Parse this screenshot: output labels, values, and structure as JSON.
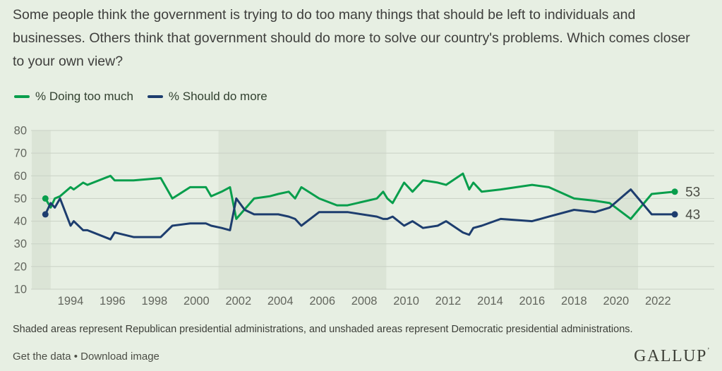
{
  "title": {
    "text": "Some people think the government is trying to do too many things that should be left to individuals and businesses. Others think that government should do more to solve our country's problems. Which comes closer to your own view?"
  },
  "legend": {
    "items": [
      {
        "label": "% Doing too much",
        "color": "#089e4c"
      },
      {
        "label": "% Should do more",
        "color": "#1d3d6e"
      }
    ]
  },
  "chart_data": {
    "type": "line",
    "title": "Government doing too much vs. should do more",
    "xlabel": "",
    "ylabel": "",
    "ylim": [
      10,
      80
    ],
    "yticks": [
      80,
      70,
      60,
      50,
      40,
      30,
      20,
      10
    ],
    "xticks": [
      1994,
      1996,
      1998,
      2000,
      2002,
      2004,
      2006,
      2008,
      2010,
      2012,
      2014,
      2016,
      2018,
      2020,
      2022
    ],
    "x_range": [
      1992.15,
      2023.1
    ],
    "grid": true,
    "legend_position": "top-left",
    "bands": {
      "meaning": "Republican presidential administrations",
      "color": "#dbe4d6",
      "intervals": [
        [
          1992.15,
          1993.05
        ],
        [
          2001.05,
          2009.05
        ],
        [
          2017.05,
          2021.05
        ]
      ]
    },
    "series": [
      {
        "name": "% Doing too much",
        "color": "#089e4c",
        "end_label": "53",
        "points": [
          [
            1992.8,
            50
          ],
          [
            1993.05,
            46
          ],
          [
            1993.25,
            50
          ],
          [
            1993.5,
            51
          ],
          [
            1994.0,
            55
          ],
          [
            1994.15,
            54
          ],
          [
            1994.6,
            57
          ],
          [
            1994.8,
            56
          ],
          [
            1995.9,
            60
          ],
          [
            1996.1,
            58
          ],
          [
            1997.0,
            58
          ],
          [
            1998.3,
            59
          ],
          [
            1998.85,
            50
          ],
          [
            1999.7,
            55
          ],
          [
            2000.45,
            55
          ],
          [
            2000.7,
            51
          ],
          [
            2001.2,
            53
          ],
          [
            2001.6,
            55
          ],
          [
            2001.9,
            41
          ],
          [
            2002.75,
            50
          ],
          [
            2003.5,
            51
          ],
          [
            2003.9,
            52
          ],
          [
            2004.4,
            53
          ],
          [
            2004.7,
            50
          ],
          [
            2005.0,
            55
          ],
          [
            2005.85,
            50
          ],
          [
            2006.7,
            47
          ],
          [
            2007.2,
            47
          ],
          [
            2008.6,
            50
          ],
          [
            2008.9,
            53
          ],
          [
            2009.1,
            50
          ],
          [
            2009.35,
            48
          ],
          [
            2009.9,
            57
          ],
          [
            2010.3,
            53
          ],
          [
            2010.8,
            58
          ],
          [
            2011.5,
            57
          ],
          [
            2011.9,
            56
          ],
          [
            2012.7,
            61
          ],
          [
            2013.0,
            54
          ],
          [
            2013.2,
            57
          ],
          [
            2013.6,
            53
          ],
          [
            2014.5,
            54
          ],
          [
            2016.0,
            56
          ],
          [
            2016.8,
            55
          ],
          [
            2018.0,
            50
          ],
          [
            2019.0,
            49
          ],
          [
            2019.7,
            48
          ],
          [
            2020.7,
            41
          ],
          [
            2021.7,
            52
          ],
          [
            2022.8,
            53
          ]
        ]
      },
      {
        "name": "% Should do more",
        "color": "#1d3d6e",
        "end_label": "43",
        "points": [
          [
            1992.8,
            43
          ],
          [
            1993.05,
            48
          ],
          [
            1993.25,
            46
          ],
          [
            1993.5,
            50
          ],
          [
            1994.0,
            38
          ],
          [
            1994.15,
            40
          ],
          [
            1994.6,
            36
          ],
          [
            1994.8,
            36
          ],
          [
            1995.9,
            32
          ],
          [
            1996.1,
            35
          ],
          [
            1997.0,
            33
          ],
          [
            1998.3,
            33
          ],
          [
            1998.85,
            38
          ],
          [
            1999.7,
            39
          ],
          [
            2000.45,
            39
          ],
          [
            2000.7,
            38
          ],
          [
            2001.2,
            37
          ],
          [
            2001.6,
            36
          ],
          [
            2001.9,
            50
          ],
          [
            2002.3,
            45
          ],
          [
            2002.75,
            43
          ],
          [
            2003.5,
            43
          ],
          [
            2003.9,
            43
          ],
          [
            2004.4,
            42
          ],
          [
            2004.7,
            41
          ],
          [
            2005.0,
            38
          ],
          [
            2005.85,
            44
          ],
          [
            2006.7,
            44
          ],
          [
            2007.2,
            44
          ],
          [
            2008.6,
            42
          ],
          [
            2008.9,
            41
          ],
          [
            2009.1,
            41
          ],
          [
            2009.35,
            42
          ],
          [
            2009.9,
            38
          ],
          [
            2010.3,
            40
          ],
          [
            2010.8,
            37
          ],
          [
            2011.5,
            38
          ],
          [
            2011.9,
            40
          ],
          [
            2012.7,
            35
          ],
          [
            2013.0,
            34
          ],
          [
            2013.2,
            37
          ],
          [
            2013.6,
            38
          ],
          [
            2014.5,
            41
          ],
          [
            2016.0,
            40
          ],
          [
            2016.8,
            42
          ],
          [
            2018.0,
            45
          ],
          [
            2019.0,
            44
          ],
          [
            2019.7,
            46
          ],
          [
            2020.7,
            54
          ],
          [
            2021.7,
            43
          ],
          [
            2022.8,
            43
          ]
        ]
      }
    ]
  },
  "footnote": "Shaded areas represent Republican presidential administrations, and unshaded areas represent Democratic presidential administrations.",
  "footer": {
    "get_data_label": "Get the data",
    "separator": "•",
    "download_label": "Download image",
    "logo_text": "GALLUP",
    "logo_mark": "’"
  },
  "colors": {
    "background": "#e7efe3",
    "band": "#dbe4d6",
    "grid": "#c9d1c5",
    "axis_text": "#63665e",
    "end_label_text": "#4b4d45",
    "title_text": "#3e3e3c"
  }
}
